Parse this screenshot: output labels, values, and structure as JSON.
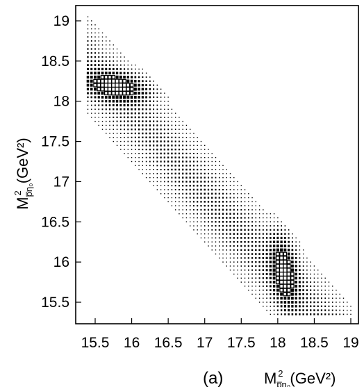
{
  "chart_data": {
    "type": "heatmap",
    "title": "",
    "panel_label": "(a)",
    "xlabel": {
      "base": "M",
      "sub": "p̅η₀",
      "sup": "2",
      "unit": "(GeV²)"
    },
    "ylabel": {
      "base": "M",
      "sub": "p̅η₀",
      "sup": "2",
      "unit": "(GeV²)"
    },
    "xlim": [
      15.2,
      19.15
    ],
    "ylim": [
      15.2,
      19.2
    ],
    "xticks": [
      "15.5",
      "16",
      "16.5",
      "17",
      "17.5",
      "18",
      "18.5",
      "19"
    ],
    "yticks": [
      "15.5",
      "16",
      "16.5",
      "17",
      "17.5",
      "18",
      "18.5",
      "19"
    ],
    "bin_width": 0.05,
    "grid": false,
    "legend": "none",
    "description_of_density": "Dalitz-style band along anti-diagonal: x + y ≈ 33.85, width ≈ 0.6 GeV²; hot spots near (15.9, 18.2) and (18.1, 16.0)",
    "band": {
      "center_sum": 33.85,
      "half_width": 0.32
    },
    "hotspots": [
      {
        "x": 16.0,
        "y": 18.2,
        "sx": 0.45,
        "sy": 0.12,
        "weight": 1.0
      },
      {
        "x": 18.1,
        "y": 16.1,
        "sx": 0.12,
        "sy": 0.45,
        "weight": 1.0
      }
    ]
  }
}
